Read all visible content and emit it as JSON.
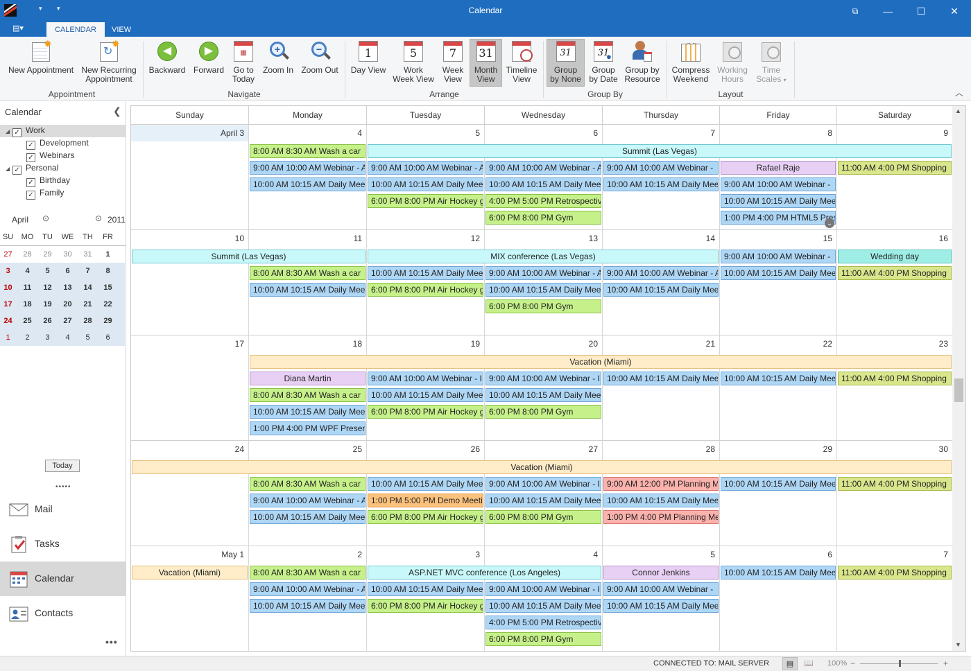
{
  "window": {
    "title": "Calendar"
  },
  "tabs": [
    {
      "label": "CALENDAR"
    },
    {
      "label": "VIEW"
    }
  ],
  "ribbon": {
    "buttons": {
      "new_appointment": "New Appointment",
      "new_recurring_1": "New Recurring",
      "new_recurring_2": "Appointment",
      "backward": "Backward",
      "forward": "Forward",
      "go_today_1": "Go to",
      "go_today_2": "Today",
      "zoom_in": "Zoom In",
      "zoom_out": "Zoom Out",
      "day_view": "Day View",
      "work_week_1": "Work",
      "work_week_2": "Week View",
      "week_1": "Week",
      "week_2": "View",
      "month_1": "Month",
      "month_2": "View",
      "timeline_1": "Timeline",
      "timeline_2": "View",
      "group_none_1": "Group",
      "group_none_2": "by None",
      "group_date_1": "Group",
      "group_date_2": "by Date",
      "group_resource_1": "Group by",
      "group_resource_2": "Resource",
      "compress_1": "Compress",
      "compress_2": "Weekend",
      "working_1": "Working",
      "working_2": "Hours",
      "timescales_1": "Time",
      "timescales_2": "Scales"
    },
    "icon_numbers": {
      "day": "1",
      "work_week": "5",
      "week": "7",
      "month": "31",
      "group_none": "31",
      "group_date": "31"
    },
    "groups": {
      "appointment": "Appointment",
      "navigate": "Navigate",
      "arrange": "Arrange",
      "group_by": "Group By",
      "layout": "Layout"
    }
  },
  "left": {
    "header": "Calendar",
    "tree": [
      {
        "label": "Work"
      },
      {
        "label": "Development"
      },
      {
        "label": "Webinars"
      },
      {
        "label": "Personal"
      },
      {
        "label": "Birthday"
      },
      {
        "label": "Family"
      }
    ],
    "minical": {
      "month": "April",
      "year": "2011",
      "dows": [
        "SU",
        "MO",
        "TU",
        "WE",
        "TH",
        "FR"
      ],
      "rows": [
        [
          "27",
          "28",
          "29",
          "30",
          "31",
          "1"
        ],
        [
          "3",
          "4",
          "5",
          "6",
          "7",
          "8"
        ],
        [
          "10",
          "11",
          "12",
          "13",
          "14",
          "15"
        ],
        [
          "17",
          "18",
          "19",
          "20",
          "21",
          "22"
        ],
        [
          "24",
          "25",
          "26",
          "27",
          "28",
          "29"
        ],
        [
          "1",
          "2",
          "3",
          "4",
          "5",
          "6"
        ]
      ],
      "today": "Today"
    },
    "nav": [
      {
        "label": "Mail"
      },
      {
        "label": "Tasks"
      },
      {
        "label": "Calendar"
      },
      {
        "label": "Contacts"
      }
    ]
  },
  "calendar": {
    "days": [
      "Sunday",
      "Monday",
      "Tuesday",
      "Wednesday",
      "Thursday",
      "Friday",
      "Saturday"
    ],
    "weeks": [
      {
        "dates": [
          "April 3",
          "4",
          "5",
          "6",
          "7",
          "8",
          "9"
        ],
        "appointments": [
          {
            "col": 1,
            "span": 1,
            "row": 0,
            "text": "8:00 AM  8:30 AM  Wash a car",
            "color": "green"
          },
          {
            "col": 2,
            "span": 5,
            "row": 0,
            "text": "Summit (Las Vegas)",
            "color": "cyan",
            "center": true
          },
          {
            "col": 1,
            "span": 1,
            "row": 1,
            "text": "9:00 AM  10:00 AM  Webinar - A",
            "color": "blue"
          },
          {
            "col": 2,
            "span": 1,
            "row": 1,
            "text": "9:00 AM  10:00 AM  Webinar - A",
            "color": "blue"
          },
          {
            "col": 3,
            "span": 1,
            "row": 1,
            "text": "9:00 AM  10:00 AM  Webinar - A",
            "color": "blue"
          },
          {
            "col": 4,
            "span": 1,
            "row": 1,
            "text": "9:00 AM  10:00 AM  Webinar - ",
            "color": "blue"
          },
          {
            "col": 5,
            "span": 1,
            "row": 1,
            "text": "Rafael Raje",
            "color": "lav",
            "center": true
          },
          {
            "col": 6,
            "span": 1,
            "row": 1,
            "text": "11:00 AM  4:00 PM  Shopping",
            "color": "olive"
          },
          {
            "col": 1,
            "span": 1,
            "row": 2,
            "text": "10:00 AM  10:15 AM  Daily Mee",
            "color": "blue"
          },
          {
            "col": 2,
            "span": 1,
            "row": 2,
            "text": "10:00 AM  10:15 AM  Daily Mee",
            "color": "blue"
          },
          {
            "col": 3,
            "span": 1,
            "row": 2,
            "text": "10:00 AM  10:15 AM  Daily Mee",
            "color": "blue"
          },
          {
            "col": 4,
            "span": 1,
            "row": 2,
            "text": "10:00 AM  10:15 AM  Daily Mee",
            "color": "blue"
          },
          {
            "col": 5,
            "span": 1,
            "row": 2,
            "text": "9:00 AM  10:00 AM  Webinar - ",
            "color": "blue"
          },
          {
            "col": 2,
            "span": 1,
            "row": 3,
            "text": "6:00 PM  8:00 PM  Air Hockey g",
            "color": "green"
          },
          {
            "col": 3,
            "span": 1,
            "row": 3,
            "text": "4:00 PM  5:00 PM  Retrospectiv",
            "color": "green"
          },
          {
            "col": 5,
            "span": 1,
            "row": 3,
            "text": "10:00 AM  10:15 AM  Daily Mee",
            "color": "blue"
          },
          {
            "col": 3,
            "span": 1,
            "row": 4,
            "text": "6:00 PM  8:00 PM  Gym",
            "color": "green"
          },
          {
            "col": 5,
            "span": 1,
            "row": 4,
            "text": "1:00 PM  4:00 PM  HTML5 Prese",
            "color": "blue"
          }
        ]
      },
      {
        "dates": [
          "10",
          "11",
          "12",
          "13",
          "14",
          "15",
          "16"
        ],
        "appointments": [
          {
            "col": 0,
            "span": 2,
            "row": 0,
            "text": "Summit (Las Vegas)",
            "color": "cyan",
            "center": true
          },
          {
            "col": 2,
            "span": 3,
            "row": 0,
            "text": "MIX conference (Las Vegas)",
            "color": "cyan",
            "center": true
          },
          {
            "col": 5,
            "span": 1,
            "row": 0,
            "text": "9:00 AM  10:00 AM  Webinar - ",
            "color": "blue"
          },
          {
            "col": 6,
            "span": 1,
            "row": 0,
            "text": "Wedding day",
            "color": "teal",
            "center": true
          },
          {
            "col": 1,
            "span": 1,
            "row": 1,
            "text": "8:00 AM  8:30 AM  Wash a car",
            "color": "green"
          },
          {
            "col": 2,
            "span": 1,
            "row": 1,
            "text": "10:00 AM  10:15 AM  Daily Mee",
            "color": "blue"
          },
          {
            "col": 3,
            "span": 1,
            "row": 1,
            "text": "9:00 AM  10:00 AM  Webinar - A",
            "color": "blue"
          },
          {
            "col": 4,
            "span": 1,
            "row": 1,
            "text": "9:00 AM  10:00 AM  Webinar - A",
            "color": "blue"
          },
          {
            "col": 5,
            "span": 1,
            "row": 1,
            "text": "10:00 AM  10:15 AM  Daily Mee",
            "color": "blue"
          },
          {
            "col": 6,
            "span": 1,
            "row": 1,
            "text": "11:00 AM  4:00 PM  Shopping",
            "color": "olive"
          },
          {
            "col": 1,
            "span": 1,
            "row": 2,
            "text": "10:00 AM  10:15 AM  Daily Mee",
            "color": "blue"
          },
          {
            "col": 2,
            "span": 1,
            "row": 2,
            "text": "6:00 PM  8:00 PM  Air Hockey g",
            "color": "green"
          },
          {
            "col": 3,
            "span": 1,
            "row": 2,
            "text": "10:00 AM  10:15 AM  Daily Mee",
            "color": "blue"
          },
          {
            "col": 4,
            "span": 1,
            "row": 2,
            "text": "10:00 AM  10:15 AM  Daily Mee",
            "color": "blue"
          },
          {
            "col": 3,
            "span": 1,
            "row": 3,
            "text": "6:00 PM  8:00 PM  Gym",
            "color": "green"
          }
        ]
      },
      {
        "dates": [
          "17",
          "18",
          "19",
          "20",
          "21",
          "22",
          "23"
        ],
        "appointments": [
          {
            "col": 1,
            "span": 6,
            "row": 0,
            "text": "Vacation (Miami)",
            "color": "peach",
            "center": true
          },
          {
            "col": 1,
            "span": 1,
            "row": 1,
            "text": "Diana Martin",
            "color": "lav",
            "center": true
          },
          {
            "col": 2,
            "span": 1,
            "row": 1,
            "text": "9:00 AM  10:00 AM  Webinar - I",
            "color": "blue"
          },
          {
            "col": 3,
            "span": 1,
            "row": 1,
            "text": "9:00 AM  10:00 AM  Webinar - I",
            "color": "blue"
          },
          {
            "col": 4,
            "span": 1,
            "row": 1,
            "text": "10:00 AM  10:15 AM  Daily Mee",
            "color": "blue"
          },
          {
            "col": 5,
            "span": 1,
            "row": 1,
            "text": "10:00 AM  10:15 AM  Daily Mee",
            "color": "blue"
          },
          {
            "col": 6,
            "span": 1,
            "row": 1,
            "text": "11:00 AM  4:00 PM  Shopping",
            "color": "olive"
          },
          {
            "col": 1,
            "span": 1,
            "row": 2,
            "text": "8:00 AM  8:30 AM  Wash a car",
            "color": "green"
          },
          {
            "col": 2,
            "span": 1,
            "row": 2,
            "text": "10:00 AM  10:15 AM  Daily Mee",
            "color": "blue"
          },
          {
            "col": 3,
            "span": 1,
            "row": 2,
            "text": "10:00 AM  10:15 AM  Daily Mee",
            "color": "blue"
          },
          {
            "col": 1,
            "span": 1,
            "row": 3,
            "text": "10:00 AM  10:15 AM  Daily Mee",
            "color": "blue"
          },
          {
            "col": 2,
            "span": 1,
            "row": 3,
            "text": "6:00 PM  8:00 PM  Air Hockey g",
            "color": "green"
          },
          {
            "col": 3,
            "span": 1,
            "row": 3,
            "text": "6:00 PM  8:00 PM  Gym",
            "color": "green"
          },
          {
            "col": 1,
            "span": 1,
            "row": 4,
            "text": "1:00 PM  4:00 PM  WPF Present",
            "color": "blue"
          }
        ]
      },
      {
        "dates": [
          "24",
          "25",
          "26",
          "27",
          "28",
          "29",
          "30"
        ],
        "appointments": [
          {
            "col": 0,
            "span": 7,
            "row": 0,
            "text": "Vacation (Miami)",
            "color": "peach",
            "center": true
          },
          {
            "col": 1,
            "span": 1,
            "row": 1,
            "text": "8:00 AM  8:30 AM  Wash a car",
            "color": "green"
          },
          {
            "col": 2,
            "span": 1,
            "row": 1,
            "text": "10:00 AM  10:15 AM  Daily Mee",
            "color": "blue"
          },
          {
            "col": 3,
            "span": 1,
            "row": 1,
            "text": "9:00 AM  10:00 AM  Webinar - I",
            "color": "blue"
          },
          {
            "col": 4,
            "span": 1,
            "row": 1,
            "text": "9:00 AM  12:00 PM  Planning M",
            "color": "red"
          },
          {
            "col": 5,
            "span": 1,
            "row": 1,
            "text": "10:00 AM  10:15 AM  Daily Mee",
            "color": "blue"
          },
          {
            "col": 6,
            "span": 1,
            "row": 1,
            "text": "11:00 AM  4:00 PM  Shopping",
            "color": "olive"
          },
          {
            "col": 1,
            "span": 1,
            "row": 2,
            "text": "9:00 AM  10:00 AM  Webinar - A",
            "color": "blue"
          },
          {
            "col": 2,
            "span": 1,
            "row": 2,
            "text": "1:00 PM  5:00 PM  Demo  Meeti",
            "color": "orange"
          },
          {
            "col": 3,
            "span": 1,
            "row": 2,
            "text": "10:00 AM  10:15 AM  Daily Mee",
            "color": "blue"
          },
          {
            "col": 4,
            "span": 1,
            "row": 2,
            "text": "10:00 AM  10:15 AM  Daily Mee",
            "color": "blue"
          },
          {
            "col": 1,
            "span": 1,
            "row": 3,
            "text": "10:00 AM  10:15 AM  Daily Mee",
            "color": "blue"
          },
          {
            "col": 2,
            "span": 1,
            "row": 3,
            "text": "6:00 PM  8:00 PM  Air Hockey g",
            "color": "green"
          },
          {
            "col": 3,
            "span": 1,
            "row": 3,
            "text": "6:00 PM  8:00 PM  Gym",
            "color": "green"
          },
          {
            "col": 4,
            "span": 1,
            "row": 3,
            "text": "1:00 PM  4:00 PM  Planning Me",
            "color": "red"
          }
        ]
      },
      {
        "dates": [
          "May 1",
          "2",
          "3",
          "4",
          "5",
          "6",
          "7"
        ],
        "appointments": [
          {
            "col": 0,
            "span": 1,
            "row": 0,
            "text": "Vacation (Miami)",
            "color": "peach",
            "center": true
          },
          {
            "col": 1,
            "span": 1,
            "row": 0,
            "text": "8:00 AM  8:30 AM  Wash a car",
            "color": "green"
          },
          {
            "col": 2,
            "span": 2,
            "row": 0,
            "text": "ASP.NET MVC conference (Los Angeles)",
            "color": "cyan",
            "center": true
          },
          {
            "col": 4,
            "span": 1,
            "row": 0,
            "text": "Connor Jenkins",
            "color": "lav",
            "center": true
          },
          {
            "col": 5,
            "span": 1,
            "row": 0,
            "text": "10:00 AM  10:15 AM  Daily Mee",
            "color": "blue"
          },
          {
            "col": 6,
            "span": 1,
            "row": 0,
            "text": "11:00 AM  4:00 PM  Shopping",
            "color": "olive"
          },
          {
            "col": 1,
            "span": 1,
            "row": 1,
            "text": "9:00 AM  10:00 AM  Webinar - A",
            "color": "blue"
          },
          {
            "col": 2,
            "span": 1,
            "row": 1,
            "text": "10:00 AM  10:15 AM  Daily Mee",
            "color": "blue"
          },
          {
            "col": 3,
            "span": 1,
            "row": 1,
            "text": "9:00 AM  10:00 AM  Webinar - I",
            "color": "blue"
          },
          {
            "col": 4,
            "span": 1,
            "row": 1,
            "text": "9:00 AM  10:00 AM  Webinar - ",
            "color": "blue"
          },
          {
            "col": 1,
            "span": 1,
            "row": 2,
            "text": "10:00 AM  10:15 AM  Daily Mee",
            "color": "blue"
          },
          {
            "col": 2,
            "span": 1,
            "row": 2,
            "text": "6:00 PM  8:00 PM  Air Hockey g",
            "color": "green"
          },
          {
            "col": 3,
            "span": 1,
            "row": 2,
            "text": "10:00 AM  10:15 AM  Daily Mee",
            "color": "blue"
          },
          {
            "col": 4,
            "span": 1,
            "row": 2,
            "text": "10:00 AM  10:15 AM  Daily Mee",
            "color": "blue"
          },
          {
            "col": 3,
            "span": 1,
            "row": 3,
            "text": "4:00 PM  5:00 PM  Retrospectiv",
            "color": "blue"
          },
          {
            "col": 3,
            "span": 1,
            "row": 4,
            "text": "6:00 PM  8:00 PM  Gym",
            "color": "green"
          }
        ]
      }
    ]
  },
  "status": {
    "connection": "CONNECTED TO: MAIL SERVER",
    "zoom": "100%"
  },
  "colors": {
    "titlebar": "#1f6dbf",
    "blue": "#aed6f5",
    "green": "#c6f18a",
    "cyan": "#c8f8fa",
    "peach": "#ffecc8",
    "lavender": "#e8d0f4",
    "olive": "#d9e68c",
    "teal": "#9feee6",
    "orange": "#fcc27c",
    "red": "#fbb2ad"
  }
}
